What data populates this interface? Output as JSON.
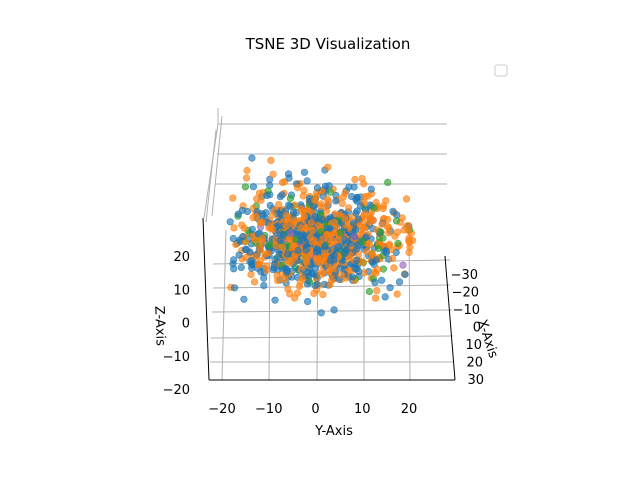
{
  "chart_data": {
    "type": "scatter",
    "projection": "3d",
    "title": "TSNE 3D Visualization",
    "xlabel": "X-Axis",
    "ylabel": "Y-Axis",
    "zlabel": "Z-Axis",
    "xlim": [
      -35,
      32
    ],
    "ylim": [
      -23,
      27
    ],
    "zlim": [
      -20,
      29
    ],
    "x_ticks": [
      "−30",
      "−20",
      "−10",
      "0",
      "10",
      "20",
      "30"
    ],
    "y_ticks": [
      "−20",
      "−10",
      "0",
      "10",
      "20"
    ],
    "z_ticks": [
      "−20",
      "−10",
      "0",
      "10",
      "20"
    ],
    "x_tick_values": [
      -30,
      -20,
      -10,
      0,
      10,
      20,
      30
    ],
    "y_tick_values": [
      -20,
      -10,
      0,
      10,
      20
    ],
    "z_tick_values": [
      -20,
      -10,
      0,
      10,
      20
    ],
    "grid": true,
    "legend": {
      "position": "top-right",
      "entries": []
    },
    "series": [
      {
        "color": "#1f77b4",
        "count": 500,
        "spread": [
          12,
          8,
          9
        ]
      },
      {
        "color": "#2ca02c",
        "count": 90,
        "spread": [
          12,
          10,
          7
        ]
      },
      {
        "color": "#9467bd",
        "count": 15,
        "spread": [
          10,
          8,
          7
        ]
      },
      {
        "color": "#ff7f0e",
        "count": 520,
        "spread": [
          11,
          9,
          9
        ]
      }
    ]
  }
}
